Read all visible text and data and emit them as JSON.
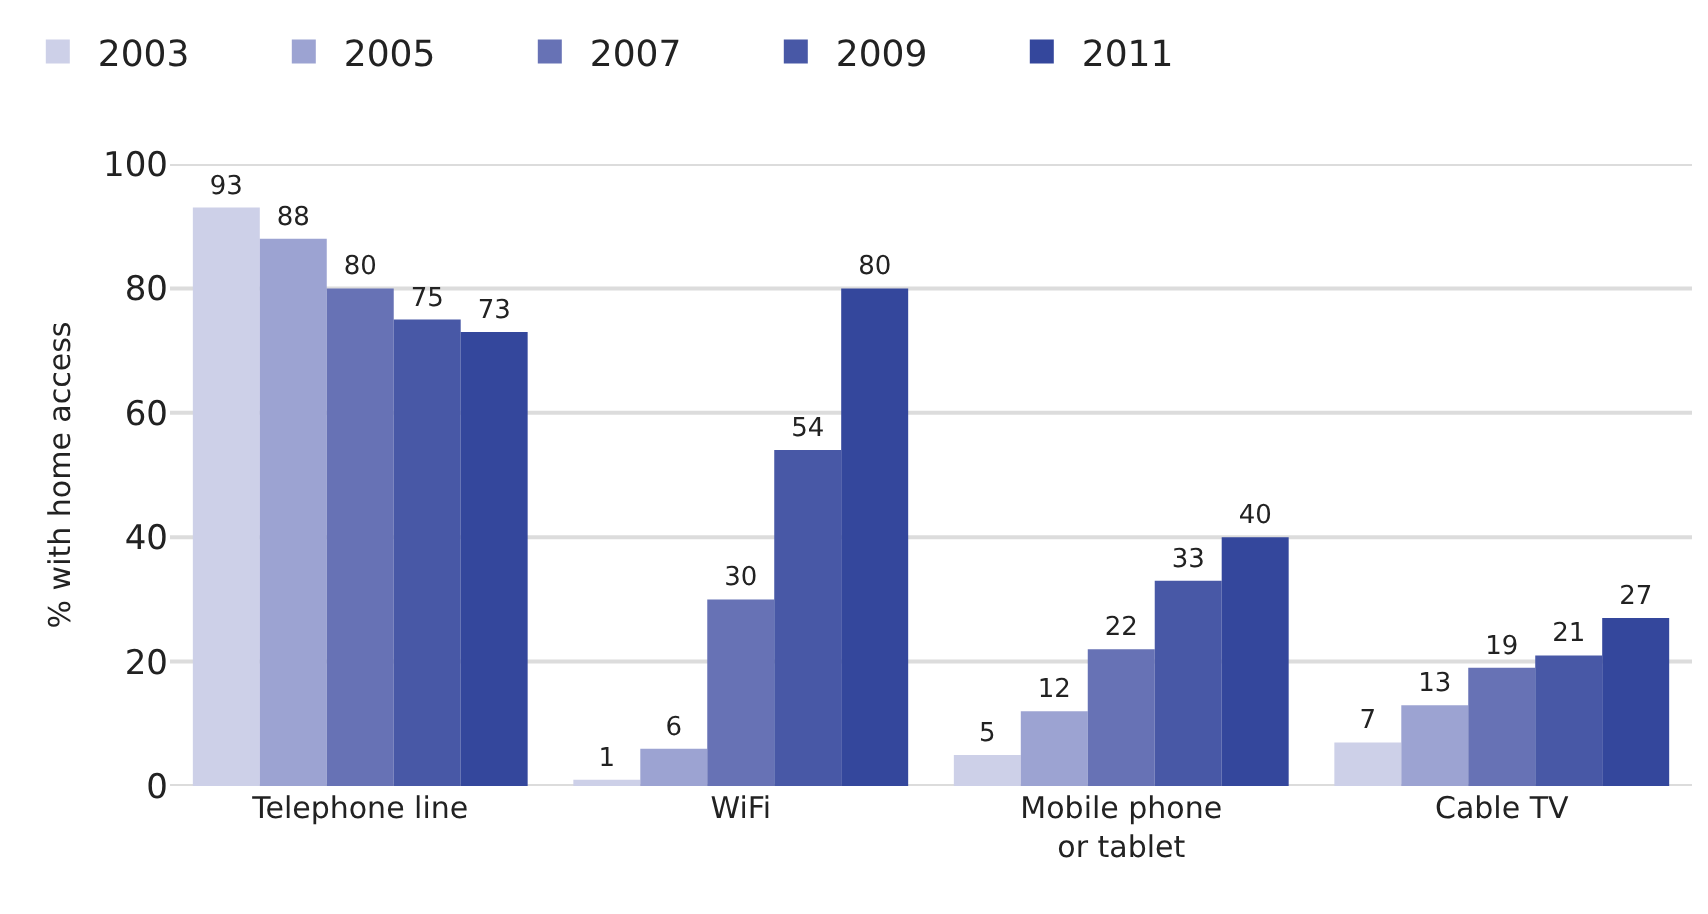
{
  "chart_data": {
    "type": "bar",
    "ylabel": "% with home access",
    "categories": [
      "Telephone line",
      "WiFi",
      "Mobile phone\nor tablet",
      "Cable TV"
    ],
    "series": [
      {
        "name": "2003",
        "color": "#cdd0e8",
        "values": [
          93,
          1,
          5,
          7
        ]
      },
      {
        "name": "2005",
        "color": "#9ca3d2",
        "values": [
          88,
          6,
          12,
          13
        ]
      },
      {
        "name": "2007",
        "color": "#6772b5",
        "values": [
          80,
          30,
          22,
          19
        ]
      },
      {
        "name": "2009",
        "color": "#4858a6",
        "values": [
          75,
          54,
          33,
          21
        ]
      },
      {
        "name": "2011",
        "color": "#34479c",
        "values": [
          73,
          80,
          40,
          27
        ]
      }
    ],
    "ylim": [
      0,
      100
    ],
    "yticks": [
      0,
      20,
      40,
      60,
      80,
      100
    ],
    "grid": "y",
    "legend": "top",
    "data_labels": true
  }
}
